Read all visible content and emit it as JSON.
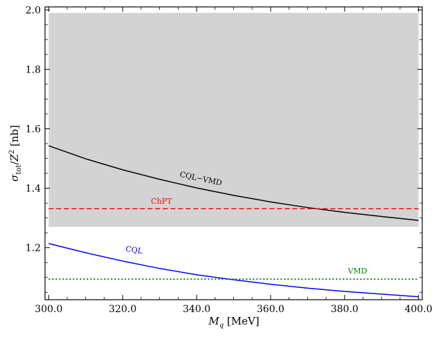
{
  "chart_data": {
    "type": "line",
    "xlabel": "M_q [MeV]",
    "ylabel": "σ_tot / Z² [nb]",
    "xlim": [
      299,
      401
    ],
    "ylim": [
      1.025,
      2.01
    ],
    "xticks": [
      300.0,
      320.0,
      340.0,
      360.0,
      380.0,
      400.0
    ],
    "xtick_labels": [
      "300.0",
      "320.0",
      "340.0",
      "360.0",
      "380.0",
      "400.0"
    ],
    "yticks": [
      1.2,
      1.4,
      1.6,
      1.8,
      2.0
    ],
    "ytick_labels": [
      "1.2",
      "1.4",
      "1.6",
      "1.8",
      "2.0"
    ],
    "shaded_band": {
      "x": [
        300,
        400
      ],
      "y": [
        1.27,
        1.99
      ],
      "color": "#d3d3d3"
    },
    "series": [
      {
        "name": "CQL-VMD",
        "label": "CQL−VMD",
        "style": "solid",
        "color": "#000000",
        "x": [
          300,
          310,
          320,
          330,
          340,
          350,
          360,
          370,
          380,
          390,
          400
        ],
        "y": [
          1.543,
          1.499,
          1.462,
          1.43,
          1.401,
          1.376,
          1.354,
          1.335,
          1.319,
          1.305,
          1.292
        ],
        "label_at": {
          "x": 341,
          "y": 1.424,
          "angle": 12
        }
      },
      {
        "name": "ChPT",
        "label": "ChPT",
        "style": "dashed",
        "color": "#ff0000",
        "x": [
          300,
          400
        ],
        "y": [
          1.331,
          1.331
        ],
        "label_at": {
          "x": 330.5,
          "y": 1.348,
          "angle": 0
        }
      },
      {
        "name": "CQL",
        "label": "CQL",
        "style": "solid",
        "color": "#0000ff",
        "x": [
          300,
          310,
          320,
          330,
          340,
          350,
          360,
          370,
          380,
          390,
          400
        ],
        "y": [
          1.214,
          1.183,
          1.155,
          1.13,
          1.109,
          1.092,
          1.077,
          1.064,
          1.053,
          1.044,
          1.035
        ],
        "label_at": {
          "x": 323,
          "y": 1.184,
          "angle": 8
        }
      },
      {
        "name": "VMD",
        "label": "VMD",
        "style": "dotted",
        "color": "#008000",
        "x": [
          300,
          400
        ],
        "y": [
          1.094,
          1.094
        ],
        "label_at": {
          "x": 383.5,
          "y": 1.113,
          "angle": 0
        }
      }
    ]
  }
}
